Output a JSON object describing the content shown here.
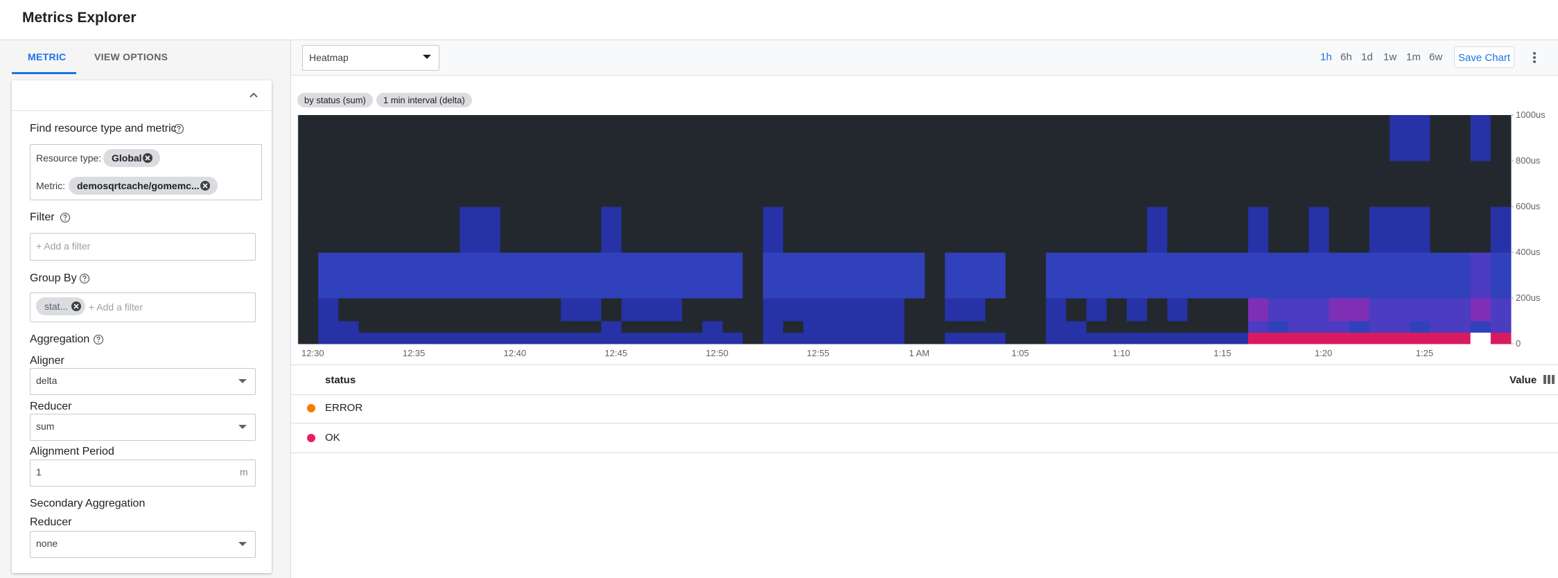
{
  "header": {
    "title": "Metrics Explorer"
  },
  "sidebar": {
    "tabs": [
      "METRIC",
      "VIEW OPTIONS"
    ],
    "find_label": "Find resource type and metric",
    "resource_type_label": "Resource type:",
    "resource_type": "Global",
    "metric_label": "Metric:",
    "metric": "demosqrtcache/gomemc...",
    "filter_label": "Filter",
    "filter_placeholder": "+ Add a filter",
    "group_by_label": "Group By",
    "group_by_chip": "stat...",
    "group_by_placeholder": "+ Add a filter",
    "aggregation_label": "Aggregation",
    "aligner_label": "Aligner",
    "aligner": "delta",
    "reducer_label": "Reducer",
    "reducer": "sum",
    "alignment_period_label": "Alignment Period",
    "alignment_period": 1,
    "alignment_unit": "m",
    "secondary_label": "Secondary Aggregation",
    "secondary_reducer_label": "Reducer",
    "secondary_reducer": "none"
  },
  "toolbar": {
    "chart_type": "Heatmap",
    "ranges": [
      {
        "label": "1h",
        "active": true
      },
      {
        "label": "6h"
      },
      {
        "label": "1d"
      },
      {
        "label": "1w"
      },
      {
        "label": "1m"
      },
      {
        "label": "6w"
      }
    ],
    "save": "Save Chart"
  },
  "chips": [
    "by status (sum)",
    "1 min interval (delta)"
  ],
  "chart_data": {
    "type": "heatmap",
    "categories": [
      "12:30",
      null,
      null,
      null,
      null,
      "12:35",
      null,
      null,
      null,
      null,
      "12:40",
      null,
      null,
      null,
      null,
      "12:45",
      null,
      null,
      null,
      null,
      "12:50",
      null,
      null,
      null,
      null,
      "12:55",
      null,
      null,
      null,
      null,
      "1 AM",
      null,
      null,
      null,
      null,
      "1:05",
      null,
      null,
      null,
      null,
      "1:10",
      null,
      null,
      null,
      null,
      "1:15",
      null,
      null,
      null,
      null,
      "1:20",
      null,
      null,
      null,
      null,
      "1:25",
      null,
      null,
      null,
      null
    ],
    "ylim": [
      0,
      1000
    ],
    "yticks": [
      0,
      {
        "value": 200,
        "label": "200us"
      },
      {
        "value": 400,
        "label": "400us"
      },
      {
        "value": 600,
        "label": "600us"
      },
      {
        "value": 800,
        "label": "800us"
      },
      {
        "value": 1000,
        "label": "1000us"
      }
    ],
    "ybins": [
      0,
      50,
      100,
      200,
      400,
      600,
      800,
      1000
    ],
    "counts": [
      [
        0,
        1,
        1,
        1,
        1,
        1,
        1,
        1,
        1,
        1,
        1,
        1,
        1,
        1,
        1,
        1,
        1,
        1,
        1,
        1,
        1,
        1,
        0,
        1,
        1,
        1,
        1,
        1,
        1,
        1,
        0,
        0,
        1,
        1,
        1,
        0,
        0,
        1,
        1,
        1,
        1,
        1,
        1,
        1,
        1,
        1,
        1,
        5,
        5,
        5,
        5,
        5,
        5,
        5,
        5,
        5,
        5,
        5,
        6,
        5
      ],
      [
        0,
        1,
        1,
        0,
        0,
        0,
        0,
        0,
        0,
        0,
        0,
        0,
        0,
        0,
        0,
        1,
        0,
        0,
        0,
        0,
        1,
        0,
        0,
        1,
        0,
        1,
        1,
        1,
        1,
        1,
        0,
        0,
        0,
        0,
        0,
        0,
        0,
        1,
        1,
        0,
        0,
        0,
        0,
        0,
        0,
        0,
        0,
        3,
        2,
        3,
        3,
        3,
        2,
        3,
        3,
        2,
        3,
        3,
        2,
        3
      ],
      [
        0,
        1,
        0,
        0,
        0,
        0,
        0,
        0,
        0,
        0,
        0,
        0,
        0,
        1,
        1,
        0,
        1,
        1,
        1,
        0,
        0,
        0,
        0,
        1,
        1,
        1,
        1,
        1,
        1,
        1,
        0,
        0,
        1,
        1,
        0,
        0,
        0,
        1,
        0,
        1,
        0,
        1,
        0,
        1,
        0,
        0,
        0,
        4,
        3,
        3,
        3,
        4,
        4,
        3,
        3,
        3,
        3,
        3,
        4,
        3
      ],
      [
        0,
        2,
        2,
        2,
        2,
        2,
        2,
        2,
        2,
        2,
        2,
        2,
        2,
        2,
        2,
        2,
        2,
        2,
        2,
        2,
        2,
        2,
        0,
        2,
        2,
        2,
        2,
        2,
        2,
        2,
        2,
        0,
        2,
        2,
        2,
        0,
        0,
        2,
        2,
        2,
        2,
        2,
        2,
        2,
        2,
        2,
        2,
        2,
        2,
        2,
        2,
        2,
        2,
        2,
        2,
        2,
        2,
        2,
        3,
        2
      ],
      [
        0,
        0,
        0,
        0,
        0,
        0,
        0,
        0,
        1,
        1,
        0,
        0,
        0,
        0,
        0,
        1,
        0,
        0,
        0,
        0,
        0,
        0,
        0,
        1,
        0,
        0,
        0,
        0,
        0,
        0,
        0,
        0,
        0,
        0,
        0,
        0,
        0,
        0,
        0,
        0,
        0,
        0,
        1,
        0,
        0,
        0,
        0,
        1,
        0,
        0,
        1,
        0,
        0,
        1,
        1,
        1,
        0,
        0,
        0,
        1
      ],
      [
        0,
        0,
        0,
        0,
        0,
        0,
        0,
        0,
        0,
        0,
        0,
        0,
        0,
        0,
        0,
        0,
        0,
        0,
        0,
        0,
        0,
        0,
        0,
        0,
        0,
        0,
        0,
        0,
        0,
        0,
        0,
        0,
        0,
        0,
        0,
        0,
        0,
        0,
        0,
        0,
        0,
        0,
        0,
        0,
        0,
        0,
        0,
        0,
        0,
        0,
        0,
        0,
        0,
        0,
        0,
        0,
        0,
        0,
        0,
        0
      ],
      [
        0,
        0,
        0,
        0,
        0,
        0,
        0,
        0,
        0,
        0,
        0,
        0,
        0,
        0,
        0,
        0,
        0,
        0,
        0,
        0,
        0,
        0,
        0,
        0,
        0,
        0,
        0,
        0,
        0,
        0,
        0,
        0,
        0,
        0,
        0,
        0,
        0,
        0,
        0,
        0,
        0,
        0,
        0,
        0,
        0,
        0,
        0,
        0,
        0,
        0,
        0,
        0,
        0,
        0,
        1,
        1,
        0,
        0,
        1,
        0
      ]
    ],
    "colors": [
      "#23282e",
      "#2632a6",
      "#3141bb",
      "#4b3cc2",
      "#7e2fb6",
      "#d81b60",
      "#ffffff"
    ]
  },
  "legend_table": {
    "name_header": "status",
    "value_header": "Value",
    "rows": [
      {
        "name": "ERROR",
        "color": "#f57c00"
      },
      {
        "name": "OK",
        "color": "#e91e63"
      }
    ]
  }
}
